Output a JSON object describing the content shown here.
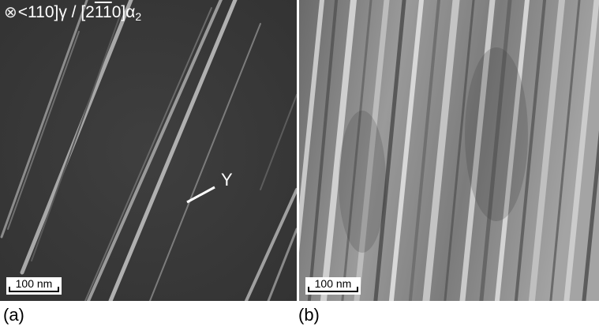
{
  "panel_a": {
    "zone_axis": {
      "symbol": "⊗",
      "gamma_part": "<110]γ / [2",
      "bar1": "1",
      "bar2": "1",
      "tail": "0]α",
      "subscript": "2"
    },
    "feature_label": "Y",
    "scale_bar": "100 nm",
    "caption": "(a)"
  },
  "panel_b": {
    "scale_bar": "100 nm",
    "caption": "(b)"
  }
}
